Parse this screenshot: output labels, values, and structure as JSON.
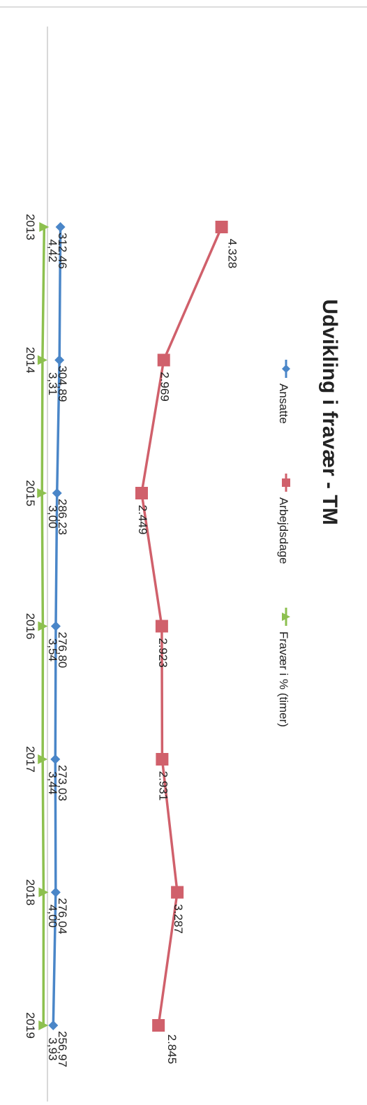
{
  "chart_data": {
    "type": "line",
    "title": "Udvikling i fravær - TM",
    "orientation": "rotated-90-clockwise",
    "categories": [
      "2013",
      "2014",
      "2015",
      "2016",
      "2017",
      "2018",
      "2019"
    ],
    "series": [
      {
        "name": "Ansatte",
        "values": [
          312.46,
          304.89,
          286.23,
          276.8,
          273.03,
          276.04,
          256.97
        ],
        "labels": [
          "312,46",
          "304,89",
          "286,23",
          "276,80",
          "273,03",
          "276,04",
          "256,97"
        ],
        "color": "#4a86c8",
        "marker": "diamond"
      },
      {
        "name": "Arbejdsdage",
        "values": [
          4328,
          2969,
          2449,
          2923,
          2931,
          3287,
          2845
        ],
        "labels": [
          "4.328",
          "2.969",
          "2.449",
          "2.923",
          "2.931",
          "3.287",
          "2.845"
        ],
        "color": "#d0606b",
        "marker": "square"
      },
      {
        "name": "Fravær i % (timer)",
        "values": [
          4.42,
          3.31,
          3.0,
          3.54,
          3.44,
          4.0,
          3.93
        ],
        "labels": [
          "4,42",
          "3,31",
          "3,00",
          "3,54",
          "3,44",
          "4,00",
          "3,93"
        ],
        "color": "#8dc04f",
        "marker": "triangle"
      }
    ],
    "legend_position": "top",
    "grid": false
  }
}
